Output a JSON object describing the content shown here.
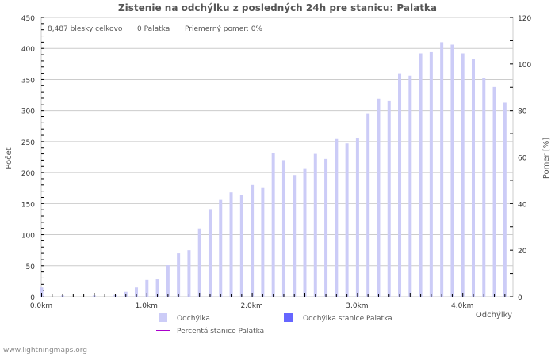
{
  "title": "Zistenie na odchýlku z posledných 24h pre stanicu: Palatka",
  "stats": {
    "total": "8,487 blesky celkovo",
    "station": "0 Palatka",
    "ratio": "Priemerný pomer: 0%"
  },
  "axes": {
    "y_left_label": "Počet",
    "y_right_label": "Pomer [%]",
    "x_label": "Odchýlky",
    "y_left_ticks": [
      "0",
      "50",
      "100",
      "150",
      "200",
      "250",
      "300",
      "350",
      "400",
      "450"
    ],
    "y_right_ticks": [
      "0",
      "20",
      "40",
      "60",
      "80",
      "100",
      "120"
    ],
    "x_ticks": [
      "0.0km",
      "1.0km",
      "2.0km",
      "3.0km",
      "4.0km"
    ]
  },
  "legend": {
    "item1": "Odchýlka",
    "item2": "Odchýlka stanice Palatka",
    "item3": "Percentá stanice Palatka"
  },
  "footer": "www.lightningmaps.org",
  "colors": {
    "bar": "#ccccf7",
    "station_bar": "#6666ff",
    "line": "#aa00cc",
    "grid": "#cccccc"
  },
  "chart_data": {
    "type": "bar",
    "title": "Zistenie na odchýlku z posledných 24h pre stanicu: Palatka",
    "xlabel": "Odchýlky",
    "ylabel": "Počet",
    "y2label": "Pomer [%]",
    "ylim": [
      0,
      450
    ],
    "y2lim": [
      0,
      120
    ],
    "grid": true,
    "legend_position": "bottom",
    "categories": [
      "0.0",
      "0.1",
      "0.2",
      "0.3",
      "0.4",
      "0.5",
      "0.6",
      "0.7",
      "0.8",
      "0.9",
      "1.0",
      "1.1",
      "1.2",
      "1.3",
      "1.4",
      "1.5",
      "1.6",
      "1.7",
      "1.8",
      "1.9",
      "2.0",
      "2.1",
      "2.2",
      "2.3",
      "2.4",
      "2.5",
      "2.6",
      "2.7",
      "2.8",
      "2.9",
      "3.0",
      "3.1",
      "3.2",
      "3.3",
      "3.4",
      "3.5",
      "3.6",
      "3.7",
      "3.8",
      "3.9",
      "4.0",
      "4.1",
      "4.2",
      "4.3",
      "4.4"
    ],
    "series": [
      {
        "name": "Odchýlka",
        "values": [
          15,
          0,
          2,
          0,
          0,
          2,
          0,
          3,
          8,
          15,
          27,
          28,
          51,
          70,
          75,
          110,
          141,
          156,
          168,
          164,
          180,
          175,
          232,
          220,
          196,
          207,
          230,
          222,
          254,
          247,
          256,
          295,
          319,
          315,
          360,
          356,
          392,
          394,
          410,
          406,
          392,
          383,
          353,
          338,
          313
        ]
      },
      {
        "name": "Odchýlka stanice Palatka",
        "values": [
          0,
          0,
          0,
          0,
          0,
          0,
          0,
          0,
          0,
          0,
          0,
          0,
          0,
          0,
          0,
          0,
          0,
          0,
          0,
          0,
          0,
          0,
          0,
          0,
          0,
          0,
          0,
          0,
          0,
          0,
          0,
          0,
          0,
          0,
          0,
          0,
          0,
          0,
          0,
          0,
          0,
          0,
          0,
          0,
          0
        ]
      },
      {
        "name": "Percentá stanice Palatka",
        "values": [
          0,
          0,
          0,
          0,
          0,
          0,
          0,
          0,
          0,
          0,
          0,
          0,
          0,
          0,
          0,
          0,
          0,
          0,
          0,
          0,
          0,
          0,
          0,
          0,
          0,
          0,
          0,
          0,
          0,
          0,
          0,
          0,
          0,
          0,
          0,
          0,
          0,
          0,
          0,
          0,
          0,
          0,
          0,
          0,
          0
        ]
      }
    ]
  }
}
